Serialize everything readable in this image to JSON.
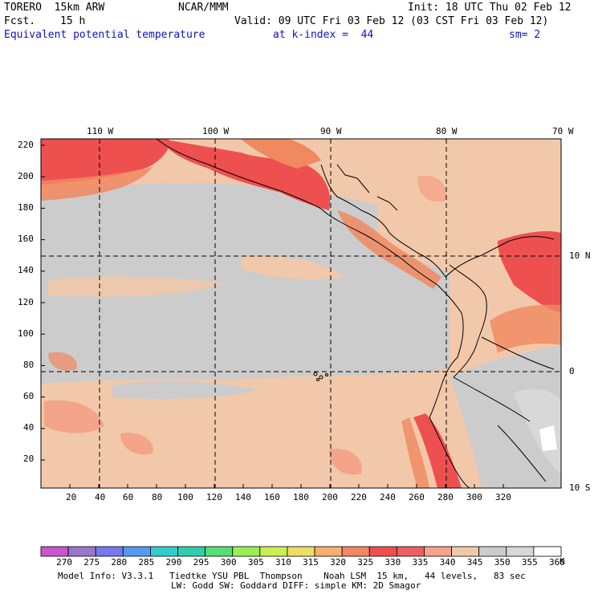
{
  "header": {
    "model": "TORERO  15km ARW",
    "center": "NCAR/MMM",
    "init": "Init: 18 UTC Thu 02 Feb 12",
    "fcst_label": "Fcst.",
    "fcst_value": "15 h",
    "valid": "Valid: 09 UTC Fri 03 Feb 12 (03 CST Fri 03 Feb 12)",
    "field": "Equivalent potential temperature",
    "level": "at k-index =  44",
    "smoothing": "sm= 2"
  },
  "top_lon_labels": [
    "110 W",
    "100 W",
    "90 W",
    "80 W",
    "70 W"
  ],
  "right_lat_labels": [
    "10 N",
    "0",
    "10 S"
  ],
  "y_axis_ticks": [
    "220",
    "200",
    "180",
    "160",
    "140",
    "120",
    "100",
    "80",
    "60",
    "40",
    "20"
  ],
  "x_axis_ticks": [
    "20",
    "40",
    "60",
    "80",
    "100",
    "120",
    "140",
    "160",
    "180",
    "200",
    "220",
    "240",
    "260",
    "280",
    "300",
    "320"
  ],
  "colorbar": {
    "unit": "K",
    "levels": [
      "270",
      "275",
      "280",
      "285",
      "290",
      "295",
      "300",
      "305",
      "310",
      "315",
      "320",
      "325",
      "330",
      "335",
      "340",
      "345",
      "350",
      "355",
      "360"
    ],
    "colors": [
      "#cc55cc",
      "#9977cc",
      "#7777ee",
      "#5599ee",
      "#33cccc",
      "#33ccaa",
      "#55dd77",
      "#99ee55",
      "#ccee55",
      "#eedd66",
      "#f4b070",
      "#f08860",
      "#ee5050",
      "#ee6060",
      "#f4a488",
      "#f2c8aa",
      "#cccccc",
      "#d8d8d8",
      "#ffffff"
    ]
  },
  "footer": {
    "line1": "Model Info: V3.3.1   Tiedtke YSU PBL  Thompson    Noah LSM  15 km,   44 levels,   83 sec",
    "line2": "LW: Godd SW: Goddard DIFF: simple KM: 2D Smagor"
  }
}
